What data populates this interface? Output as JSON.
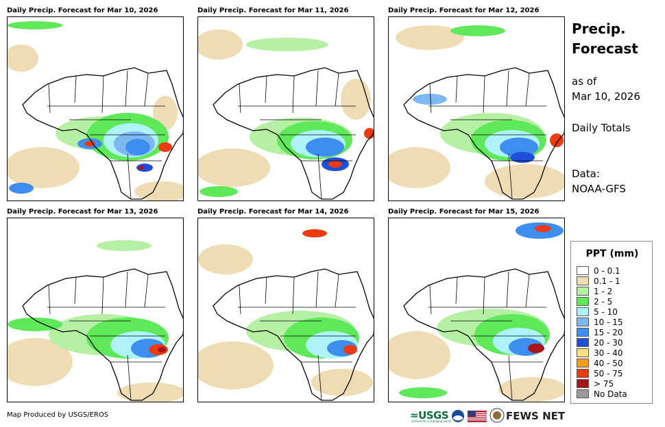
{
  "panels": [
    {
      "title": "Daily Precip. Forecast for Mar 10, 2026"
    },
    {
      "title": "Daily Precip. Forecast for Mar 11, 2026"
    },
    {
      "title": "Daily Precip. Forecast for Mar 12, 2026"
    },
    {
      "title": "Daily Precip. Forecast for Mar 13, 2026"
    },
    {
      "title": "Daily Precip. Forecast for Mar 14, 2026"
    },
    {
      "title": "Daily Precip. Forecast for Mar 15, 2026"
    }
  ],
  "side": {
    "title_line1": "Precip.",
    "title_line2": "Forecast",
    "asof_line1": "as of",
    "asof_line2": "Mar 10, 2026",
    "totals": "Daily Totals",
    "data_line1": "Data:",
    "data_line2": "NOAA-GFS"
  },
  "legend": {
    "title": "PPT (mm)",
    "items": [
      {
        "label": "0 - 0.1",
        "color": "#ffffff"
      },
      {
        "label": "0.1 - 1",
        "color": "#eedcb4"
      },
      {
        "label": "1 - 2",
        "color": "#b5f0a5"
      },
      {
        "label": "2 - 5",
        "color": "#5ee85a"
      },
      {
        "label": "5 - 10",
        "color": "#aef3f7"
      },
      {
        "label": "10 - 15",
        "color": "#7fb7f3"
      },
      {
        "label": "15 - 20",
        "color": "#3e8ef0"
      },
      {
        "label": "20 - 30",
        "color": "#1f4fd6"
      },
      {
        "label": "30 - 40",
        "color": "#fde082"
      },
      {
        "label": "40 - 50",
        "color": "#f59c1a"
      },
      {
        "label": "50 - 75",
        "color": "#ec3b10"
      },
      {
        "label": "> 75",
        "color": "#a7161a"
      },
      {
        "label": "No Data",
        "color": "#9a9a9a"
      }
    ]
  },
  "footer": {
    "credit": "Map Produced by USGS/EROS",
    "usgs": "≈USGS",
    "usgs_tagline": "science for a changing world",
    "fews": "FEWS NET"
  }
}
